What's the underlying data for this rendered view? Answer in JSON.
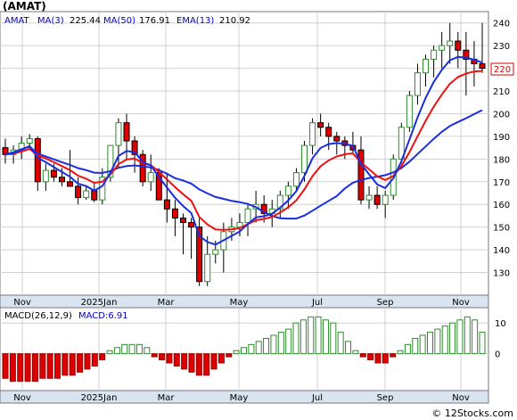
{
  "title": "(AMAT)",
  "watermark": "© 12Stocks.com",
  "legend": {
    "symbol": "AMAT",
    "ma3": "MA(3)",
    "ma3_value": "225.44",
    "ma50": "MA(50)",
    "ma50_value": "176.91",
    "ema13": "EMA(13)",
    "ema13_value": "210.92"
  },
  "macd_legend": {
    "label": "MACD(26,12,9)",
    "value_label": "MACD:6.91"
  },
  "last_price_tag": "220",
  "colors": {
    "up_candle": "#2e8b2e",
    "down_candle": "#dd0000",
    "ma_red": "#ee1111",
    "ma_blue": "#1a2edd",
    "grid": "#d0d0d0",
    "axis_bg": "#d8e4f0",
    "legend_blue": "#0000cc"
  },
  "chart_data": [
    {
      "type": "candlestick",
      "title": "(AMAT)",
      "ylim": [
        120,
        245
      ],
      "yticks": [
        130,
        140,
        150,
        160,
        170,
        180,
        190,
        200,
        210,
        220,
        230,
        240
      ],
      "x_labels": [
        "Nov",
        "2025Jan",
        "Mar",
        "May",
        "Jul",
        "Sep",
        "Nov"
      ],
      "grid": true,
      "series": [
        {
          "name": "MA(3)",
          "last": 225.44
        },
        {
          "name": "MA(50)",
          "last": 176.91
        },
        {
          "name": "EMA(13)",
          "last": 210.92
        }
      ],
      "candles_ohlc": [
        [
          185,
          189,
          178,
          182
        ],
        [
          182,
          186,
          178,
          184
        ],
        [
          184,
          190,
          180,
          187
        ],
        [
          187,
          191,
          184,
          189
        ],
        [
          189,
          190,
          166,
          170
        ],
        [
          170,
          178,
          166,
          175
        ],
        [
          175,
          178,
          170,
          172
        ],
        [
          172,
          176,
          168,
          170
        ],
        [
          170,
          184,
          168,
          168
        ],
        [
          168,
          172,
          160,
          163
        ],
        [
          163,
          168,
          162,
          166
        ],
        [
          166,
          170,
          161,
          162
        ],
        [
          162,
          176,
          160,
          172
        ],
        [
          172,
          186,
          170,
          186
        ],
        [
          186,
          198,
          176,
          196
        ],
        [
          196,
          200,
          180,
          188
        ],
        [
          188,
          190,
          174,
          182
        ],
        [
          182,
          184,
          168,
          170
        ],
        [
          170,
          182,
          166,
          174
        ],
        [
          174,
          176,
          166,
          162
        ],
        [
          162,
          174,
          152,
          158
        ],
        [
          158,
          162,
          146,
          154
        ],
        [
          154,
          156,
          138,
          152
        ],
        [
          152,
          154,
          136,
          150
        ],
        [
          150,
          154,
          124,
          126
        ],
        [
          126,
          146,
          124,
          138
        ],
        [
          138,
          144,
          134,
          140
        ],
        [
          140,
          152,
          130,
          148
        ],
        [
          148,
          154,
          144,
          150
        ],
        [
          150,
          156,
          146,
          152
        ],
        [
          152,
          160,
          146,
          158
        ],
        [
          158,
          166,
          152,
          160
        ],
        [
          160,
          164,
          152,
          156
        ],
        [
          156,
          162,
          150,
          158
        ],
        [
          158,
          166,
          154,
          164
        ],
        [
          164,
          170,
          158,
          168
        ],
        [
          168,
          176,
          166,
          174
        ],
        [
          174,
          188,
          170,
          186
        ],
        [
          186,
          198,
          182,
          196
        ],
        [
          196,
          200,
          190,
          194
        ],
        [
          194,
          196,
          184,
          190
        ],
        [
          190,
          192,
          182,
          188
        ],
        [
          188,
          190,
          180,
          186
        ],
        [
          186,
          192,
          182,
          184
        ],
        [
          184,
          190,
          160,
          162
        ],
        [
          162,
          168,
          158,
          164
        ],
        [
          164,
          168,
          158,
          160
        ],
        [
          160,
          166,
          154,
          164
        ],
        [
          164,
          182,
          162,
          180
        ],
        [
          180,
          196,
          178,
          194
        ],
        [
          194,
          210,
          192,
          208
        ],
        [
          208,
          222,
          204,
          218
        ],
        [
          218,
          226,
          212,
          224
        ],
        [
          224,
          230,
          216,
          228
        ],
        [
          228,
          236,
          220,
          230
        ],
        [
          230,
          240,
          222,
          232
        ],
        [
          232,
          236,
          220,
          228
        ],
        [
          228,
          236,
          208,
          224
        ],
        [
          224,
          232,
          212,
          222
        ],
        [
          222,
          240,
          218,
          220
        ]
      ]
    },
    {
      "type": "bar",
      "title": "MACD(26,12,9)",
      "ylim": [
        -12,
        15
      ],
      "yticks": [
        0,
        10
      ],
      "x_labels": [
        "Nov",
        "2025Jan",
        "Mar",
        "May",
        "Jul",
        "Sep",
        "Nov"
      ],
      "values": [
        -8,
        -9,
        -9,
        -9,
        -9,
        -8,
        -8,
        -8,
        -7,
        -7,
        -6,
        -5,
        -4,
        -2,
        1,
        2,
        3,
        3,
        3,
        2,
        -1,
        -2,
        -3,
        -4,
        -5,
        -6,
        -7,
        -7,
        -5,
        -3,
        -1,
        1,
        2,
        3,
        4,
        5,
        6,
        7,
        8,
        10,
        11,
        12,
        12,
        11,
        10,
        7,
        4,
        1,
        -1,
        -2,
        -3,
        -3,
        -1,
        1,
        3,
        5,
        6,
        7,
        8,
        9,
        10,
        11,
        12,
        11,
        7
      ],
      "last": 6.91
    }
  ]
}
